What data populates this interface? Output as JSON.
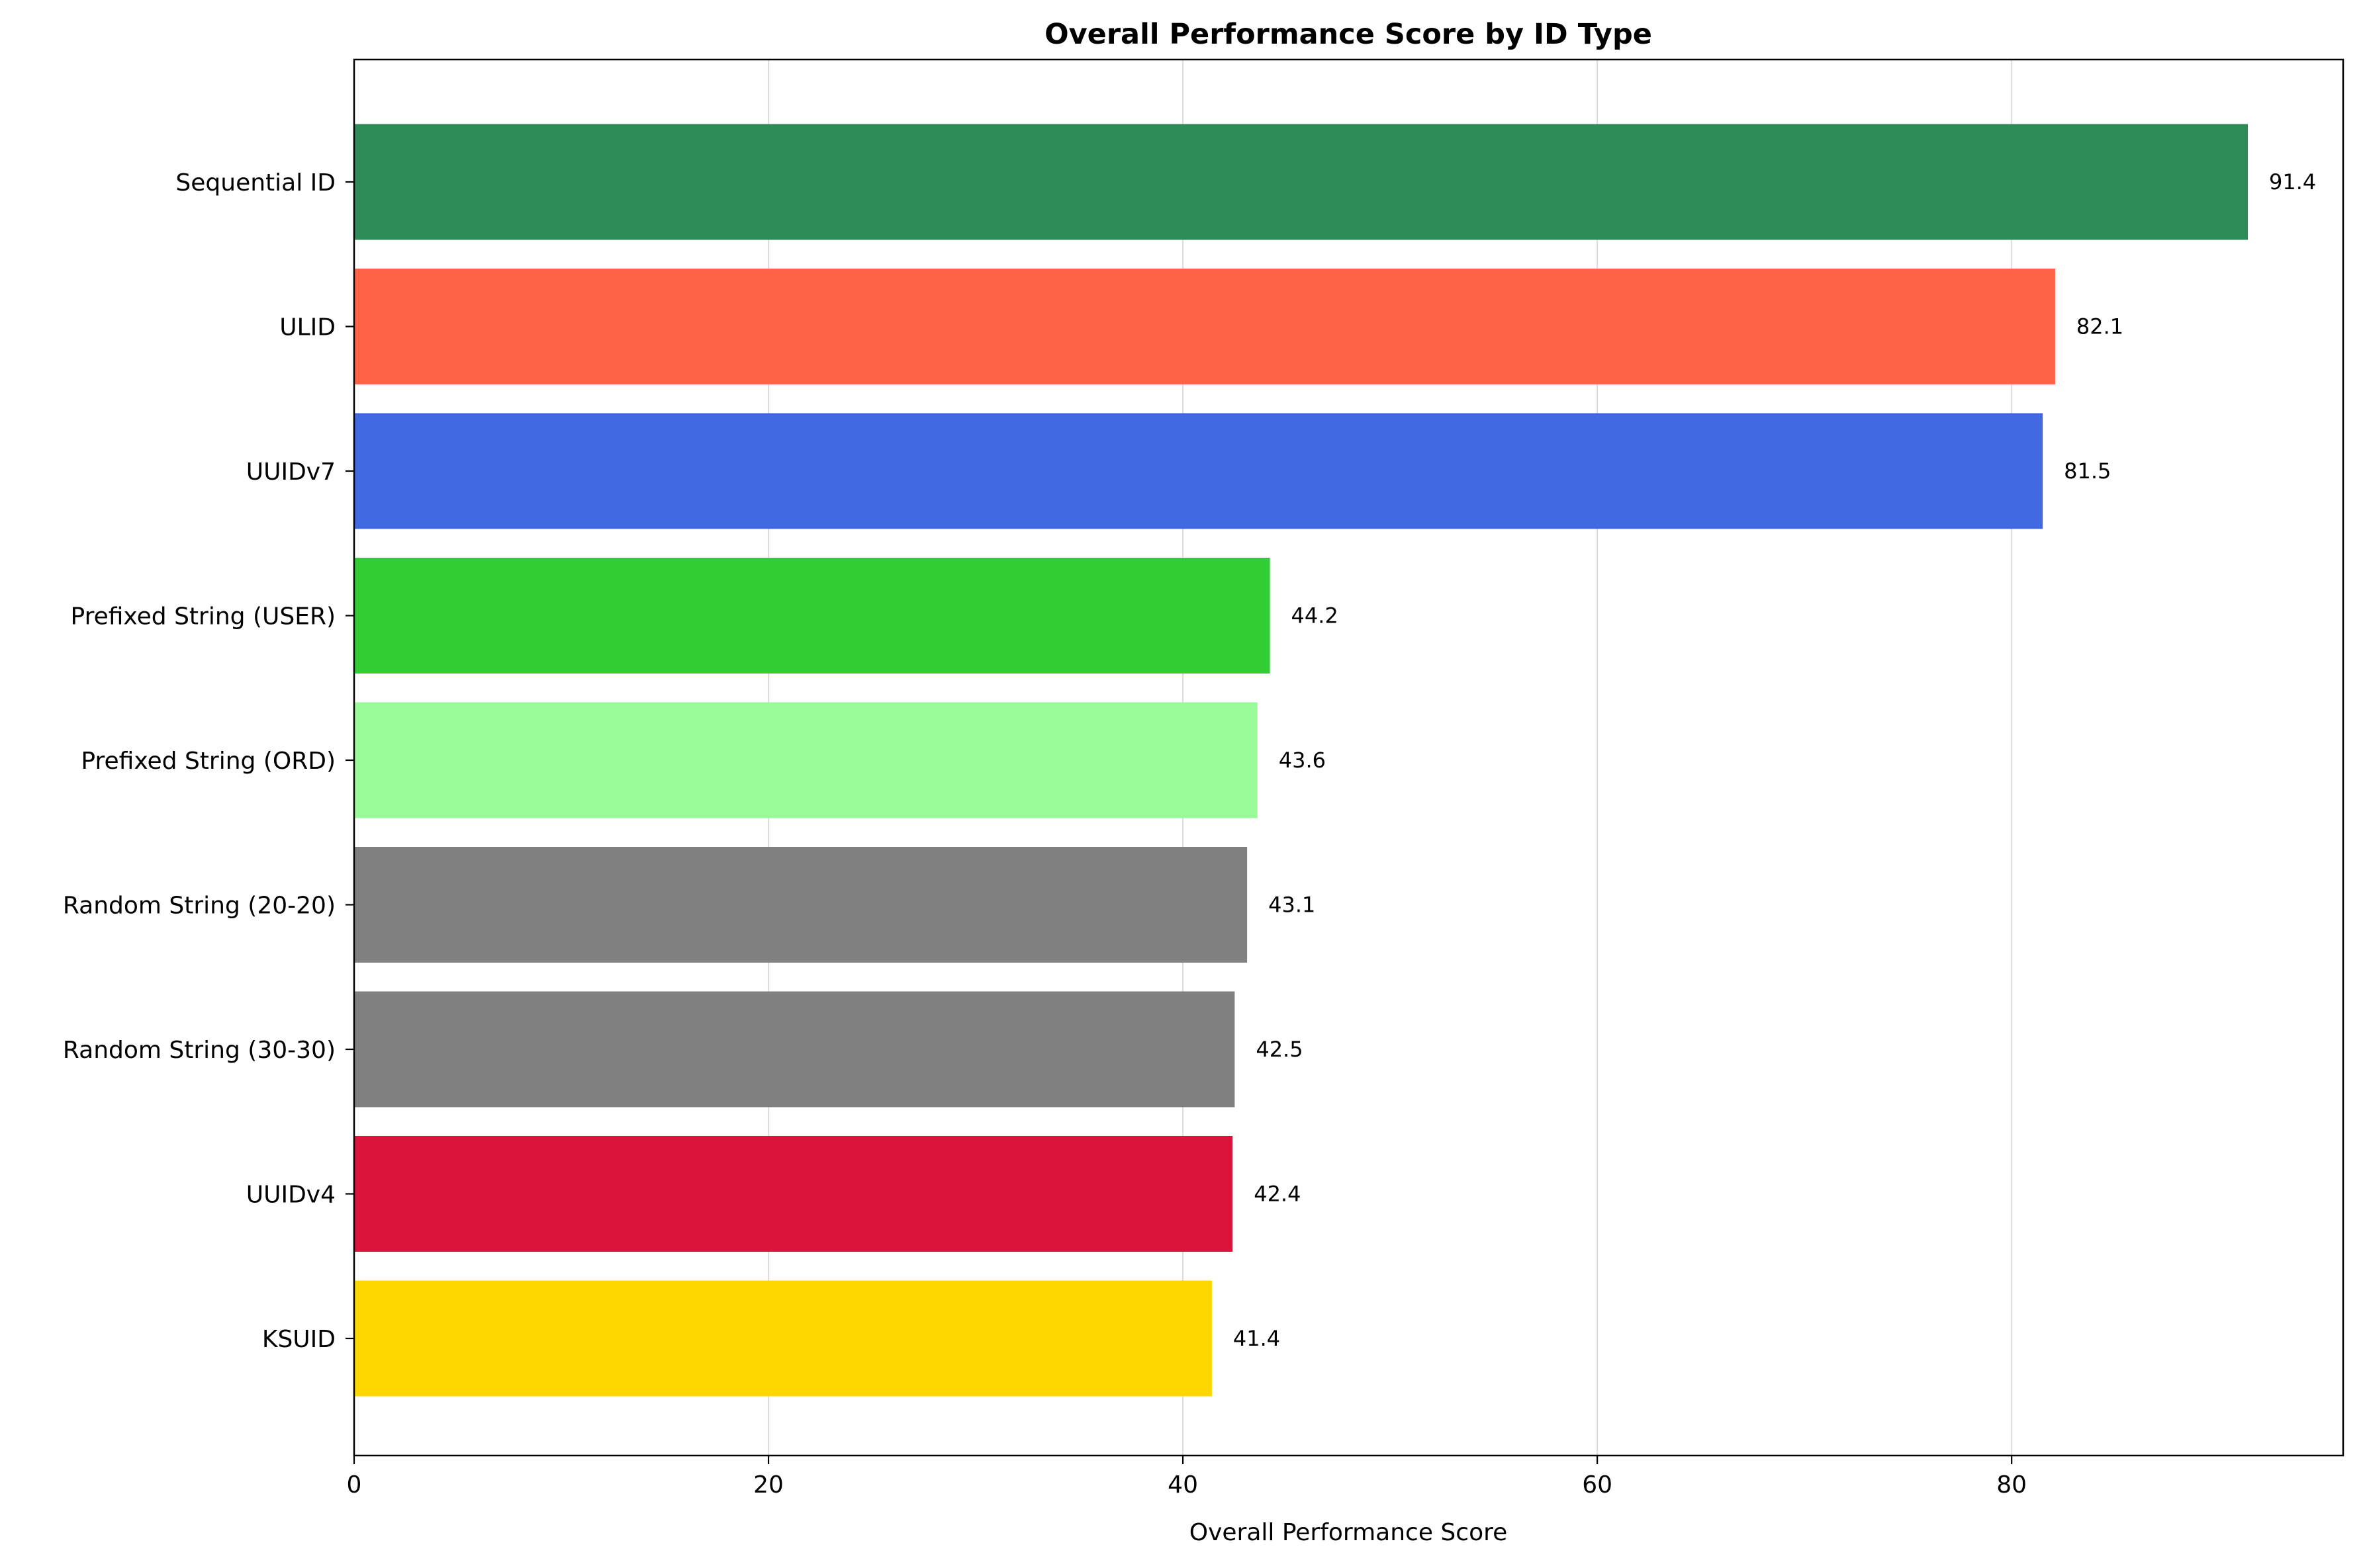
{
  "chart_data": {
    "type": "bar",
    "orientation": "horizontal",
    "title": "Overall Performance Score by ID Type",
    "xlabel": "Overall Performance Score",
    "ylabel": "",
    "xlim": [
      0,
      96
    ],
    "xticks": [
      0,
      20,
      40,
      60,
      80
    ],
    "xtick_labels": [
      "0",
      "20",
      "40",
      "60",
      "80"
    ],
    "grid": "vertical (x-axis)",
    "legend": "none",
    "categories": [
      "Sequential ID",
      "ULID",
      "UUIDv7",
      "Prefixed String (USER)",
      "Prefixed String (ORD)",
      "Random String (20-20)",
      "Random String (30-30)",
      "UUIDv4",
      "KSUID"
    ],
    "values": [
      91.4,
      82.1,
      81.5,
      44.2,
      43.6,
      43.1,
      42.5,
      42.4,
      41.4
    ],
    "value_labels": [
      "91.4",
      "82.1",
      "81.5",
      "44.2",
      "43.6",
      "43.1",
      "42.5",
      "42.4",
      "41.4"
    ],
    "colors": [
      "#2e8b57",
      "#ff6347",
      "#4169e1",
      "#32cd32",
      "#98fb98",
      "#808080",
      "#808080",
      "#dc143c",
      "#ffd700"
    ]
  }
}
